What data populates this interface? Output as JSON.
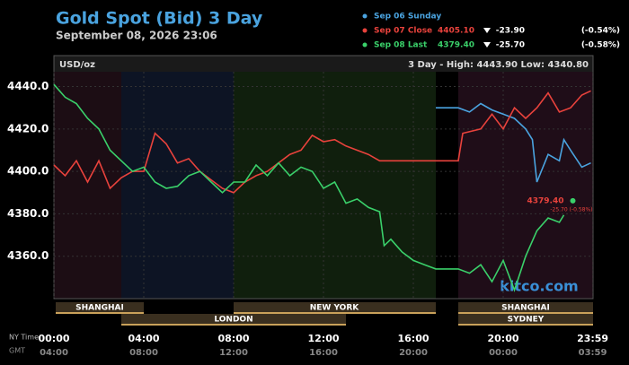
{
  "chart_data": {
    "type": "line",
    "title": "Gold Spot (Bid) 3 Day",
    "subtitle": "September 08, 2026 23:06",
    "unit_label": "USD/oz",
    "range_label": "3 Day - High: 4443.90  Low: 4340.80",
    "watermark": "kitco.com",
    "x_axis_label": "NY Time",
    "x2_axis_label": "GMT",
    "xlim": [
      0,
      24
    ],
    "xticks": [
      {
        "value": 0,
        "label": "00:00"
      },
      {
        "value": 4,
        "label": "04:00"
      },
      {
        "value": 8,
        "label": "08:00"
      },
      {
        "value": 12,
        "label": "12:00"
      },
      {
        "value": 16,
        "label": "16:00"
      },
      {
        "value": 20,
        "label": "20:00"
      },
      {
        "value": 23.983,
        "label": "23:59"
      }
    ],
    "x2ticks": [
      {
        "value": 0,
        "label": "04:00"
      },
      {
        "value": 4,
        "label": "08:00"
      },
      {
        "value": 8,
        "label": "12:00"
      },
      {
        "value": 12,
        "label": "16:00"
      },
      {
        "value": 16,
        "label": "20:00"
      },
      {
        "value": 20,
        "label": "00:00"
      },
      {
        "value": 23.983,
        "label": "03:59"
      }
    ],
    "ylim": [
      4340,
      4447
    ],
    "yticks": [
      {
        "value": 4360,
        "label": "4360.0"
      },
      {
        "value": 4380,
        "label": "4380.0"
      },
      {
        "value": 4400,
        "label": "4400.0"
      },
      {
        "value": 4420,
        "label": "4420.0"
      },
      {
        "value": 4440,
        "label": "4440.0"
      }
    ],
    "sessions": [
      "SHANGHAI",
      "LONDON",
      "NEW YORK",
      "SHANGHAI",
      "SYDNEY"
    ],
    "series": [
      {
        "name": "Sep 06 Sunday",
        "color": "#4aa3df",
        "x": [
          17,
          18,
          18.5,
          19,
          19.5,
          20,
          20.5,
          21,
          21.3,
          21.5,
          22,
          22.5,
          22.7,
          23,
          23.5,
          23.9
        ],
        "values": [
          4430,
          4430,
          4428,
          4432,
          4429,
          4427,
          4425,
          4420,
          4415,
          4395,
          4408,
          4405,
          4415,
          4410,
          4402,
          4404
        ]
      },
      {
        "name": "Sep 07 Close",
        "color": "#e8423c",
        "legend_value": "4405.10",
        "legend_change": "-23.90",
        "legend_pct": "(-0.54%)",
        "x": [
          0,
          0.5,
          1,
          1.5,
          2,
          2.5,
          3,
          3.5,
          4,
          4.5,
          5,
          5.5,
          6,
          6.5,
          7,
          7.5,
          8,
          8.5,
          9,
          9.5,
          10,
          10.5,
          11,
          11.5,
          12,
          12.5,
          13,
          13.5,
          14,
          14.5,
          17,
          18,
          18.2,
          19,
          19.5,
          20,
          20.5,
          21,
          21.5,
          22,
          22.5,
          23,
          23.5,
          23.9
        ],
        "values": [
          4403,
          4398,
          4405,
          4395,
          4405,
          4392,
          4397,
          4400,
          4400,
          4418,
          4413,
          4404,
          4406,
          4400,
          4396,
          4392,
          4390,
          4395,
          4398,
          4400,
          4404,
          4408,
          4410,
          4417,
          4414,
          4415,
          4412,
          4410,
          4408,
          4405,
          4405,
          4405,
          4418,
          4420,
          4427,
          4420,
          4430,
          4425,
          4430,
          4437,
          4428,
          4430,
          4436,
          4438
        ]
      },
      {
        "name": "Sep 08 Last",
        "color": "#3ad06a",
        "legend_value": "4379.40",
        "legend_change": "-25.70",
        "legend_pct": "(-0.58%)",
        "x": [
          0,
          0.5,
          1,
          1.5,
          2,
          2.5,
          3,
          3.5,
          4,
          4.5,
          5,
          5.5,
          6,
          6.5,
          7,
          7.5,
          8,
          8.5,
          9,
          9.5,
          10,
          10.5,
          11,
          11.5,
          12,
          12.5,
          13,
          13.5,
          14,
          14.5,
          14.7,
          15,
          15.5,
          16,
          16.5,
          17,
          18,
          18.5,
          19,
          19.5,
          20,
          20.5,
          21,
          21.5,
          22,
          22.5,
          22.7
        ],
        "values": [
          4441,
          4435,
          4432,
          4425,
          4420,
          4410,
          4405,
          4400,
          4402,
          4395,
          4392,
          4393,
          4398,
          4400,
          4395,
          4390,
          4395,
          4395,
          4403,
          4398,
          4404,
          4398,
          4402,
          4400,
          4392,
          4395,
          4385,
          4387,
          4383,
          4381,
          4365,
          4368,
          4362,
          4358,
          4356,
          4354,
          4354,
          4352,
          4356,
          4348,
          4358,
          4344,
          4360,
          4372,
          4378,
          4376,
          4379.4
        ]
      }
    ],
    "last_label": "4379.40",
    "last_change": "-25.70 (-0.58%)"
  }
}
